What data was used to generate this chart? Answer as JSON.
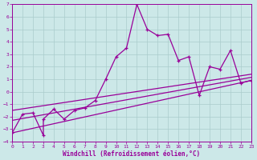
{
  "xlabel": "Windchill (Refroidissement éolien,°C)",
  "bg_color": "#cce8e8",
  "grid_color": "#aacccc",
  "line_color": "#990099",
  "xlim": [
    0,
    23
  ],
  "ylim": [
    -4,
    7
  ],
  "xticks": [
    0,
    1,
    2,
    3,
    4,
    5,
    6,
    7,
    8,
    9,
    10,
    11,
    12,
    13,
    14,
    15,
    16,
    17,
    18,
    19,
    20,
    21,
    22,
    23
  ],
  "yticks": [
    -4,
    -3,
    -2,
    -1,
    0,
    1,
    2,
    3,
    4,
    5,
    6,
    7
  ],
  "main_x": [
    0,
    1,
    2,
    3,
    3,
    4,
    5,
    6,
    7,
    8,
    9,
    10,
    11,
    12,
    13,
    14,
    15,
    16,
    17,
    18,
    19,
    20,
    21,
    22,
    23
  ],
  "main_y": [
    -3.3,
    -1.8,
    -1.7,
    -3.5,
    -2.2,
    -1.4,
    -2.2,
    -1.5,
    -1.3,
    -0.7,
    1.0,
    2.8,
    3.5,
    7.0,
    5.0,
    4.5,
    4.6,
    2.5,
    2.8,
    -0.3,
    2.0,
    1.8,
    3.3,
    0.7,
    0.9
  ],
  "line1_x": [
    0,
    23
  ],
  "line1_y": [
    -3.3,
    0.9
  ],
  "line2_x": [
    0,
    23
  ],
  "line2_y": [
    -2.3,
    1.15
  ],
  "line3_x": [
    0,
    23
  ],
  "line3_y": [
    -1.5,
    1.4
  ]
}
